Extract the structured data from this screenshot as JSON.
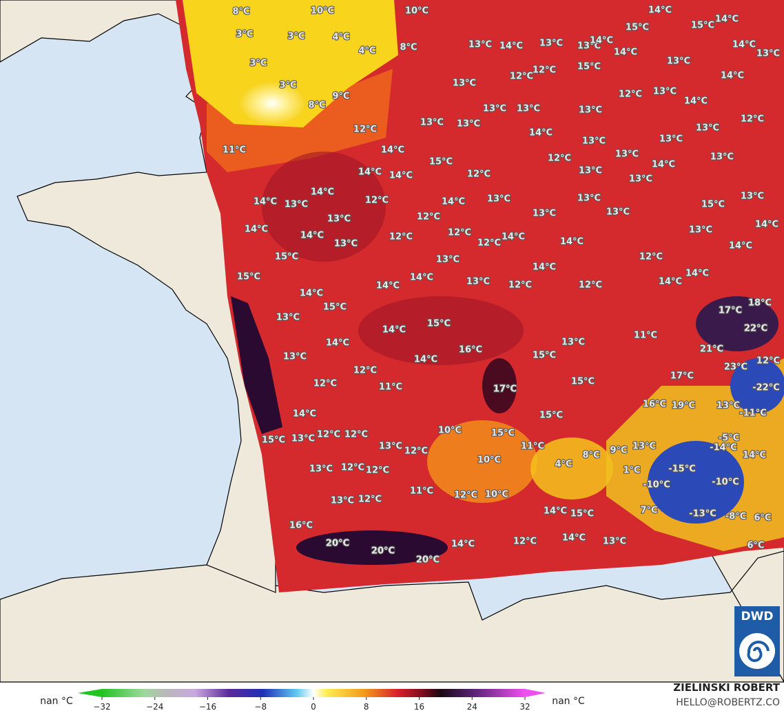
{
  "map": {
    "labels": [
      "8°C",
      "10°C",
      "10°C",
      "14°C",
      "14°C",
      "15°C",
      "15°C",
      "3°C",
      "3°C",
      "4°C",
      "4°C",
      "8°C",
      "13°C",
      "14°C",
      "13°C",
      "13°C",
      "14°C",
      "14°C",
      "14°C",
      "13°C",
      "3°C",
      "12°C",
      "12°C",
      "15°C",
      "13°C",
      "14°C",
      "3°C",
      "13°C",
      "13°C",
      "12°C",
      "8°C",
      "9°C",
      "13°C",
      "13°C",
      "13°C",
      "14°C",
      "12°C",
      "12°C",
      "13°C",
      "13°C",
      "14°C",
      "13°C",
      "11°C",
      "14°C",
      "13°C",
      "13°C",
      "13°C",
      "12°C",
      "13°C",
      "15°C",
      "14°C",
      "14°C",
      "12°C",
      "13°C",
      "14°C",
      "13°C",
      "14°C",
      "14°C",
      "13°C",
      "12°C",
      "14°C",
      "13°C",
      "13°C",
      "15°C",
      "13°C",
      "13°C",
      "12°C",
      "13°C",
      "13°C",
      "14°C",
      "14°C",
      "14°C",
      "12°C",
      "12°C",
      "14°C",
      "13°C",
      "13°C",
      "12°C",
      "14°C",
      "14°C",
      "15°C",
      "13°C",
      "12°C",
      "14°C",
      "15°C",
      "14°C",
      "13°C",
      "12°C",
      "12°C",
      "14°C",
      "14°C",
      "14°C",
      "14°C",
      "15°C",
      "18°C",
      "17°C",
      "13°C",
      "15°C",
      "14°C",
      "22°C",
      "11°C",
      "14°C",
      "13°C",
      "16°C",
      "15°C",
      "21°C",
      "13°C",
      "14°C",
      "12°C",
      "23°C",
      "12°C",
      "17°C",
      "12°C",
      "11°C",
      "15°C",
      "17°C",
      "-22°C",
      "16°C",
      "19°C",
      "13°C",
      "14°C",
      "15°C",
      "-11°C",
      "10°C",
      "15°C",
      "15°C",
      "13°C",
      "12°C",
      "12°C",
      "13°C",
      "12°C",
      "-5°C",
      "11°C",
      "13°C",
      "-14°C",
      "14°C",
      "4°C",
      "8°C",
      "9°C",
      "10°C",
      "13°C",
      "12°C",
      "12°C",
      "-15°C",
      "1°C",
      "-10°C",
      "-10°C",
      "13°C",
      "12°C",
      "11°C",
      "12°C",
      "10°C",
      "7°C",
      "-13°C",
      "-8°C",
      "6°C",
      "14°C",
      "15°C",
      "16°C",
      "20°C",
      "20°C",
      "14°C",
      "12°C",
      "14°C",
      "13°C",
      "6°C",
      "20°C"
    ]
  },
  "colorbar": {
    "left_label": "nan °C",
    "right_label": "nan °C",
    "ticks": [
      {
        "value": -32,
        "label": "−32"
      },
      {
        "value": -24,
        "label": "−24"
      },
      {
        "value": -16,
        "label": "−16"
      },
      {
        "value": -8,
        "label": "−8"
      },
      0,
      8,
      16,
      24,
      32
    ]
  },
  "credit": {
    "name": "ZIELIŃSKI ROBERT",
    "email": "HELLO@ROBERTZ.CO"
  },
  "logo": {
    "text": "DWD"
  }
}
